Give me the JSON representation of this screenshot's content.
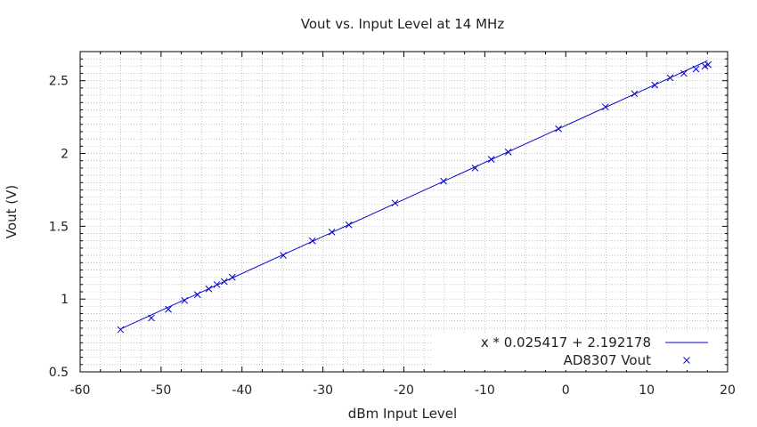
{
  "chart_data": {
    "type": "scatter",
    "title": "Vout vs. Input Level at 14 MHz",
    "xlabel": "dBm Input Level",
    "ylabel": "Vout (V)",
    "xlim": [
      -60,
      20
    ],
    "ylim": [
      0.5,
      2.7
    ],
    "x_ticks": [
      -60,
      -50,
      -40,
      -30,
      -20,
      -10,
      0,
      10,
      20
    ],
    "y_ticks": [
      0.5,
      1,
      1.5,
      2,
      2.5
    ],
    "x_tick_labels": [
      "-60",
      "-50",
      "-40",
      "-30",
      "-20",
      "-10",
      "0",
      "10",
      "20"
    ],
    "y_tick_labels": [
      "0.5",
      "1",
      "1.5",
      "2",
      "2.5"
    ],
    "grid": true,
    "legend_position": "bottom-right",
    "series": [
      {
        "name": "x * 0.025417 + 2.192178",
        "kind": "line",
        "color": "#0000cc",
        "slope": 0.025417,
        "intercept": 2.192178,
        "x_range": [
          -55,
          17.5
        ]
      },
      {
        "name": "AD8307 Vout",
        "kind": "scatter",
        "marker": "x",
        "color": "#0000cc",
        "x": [
          -55,
          -51.2,
          -49.1,
          -47.1,
          -45.5,
          -44.1,
          -43.1,
          -42.2,
          -41.2,
          -34.9,
          -31.3,
          -28.9,
          -26.8,
          -21.1,
          -15.1,
          -11.2,
          -9.2,
          -7.1,
          -0.9,
          4.9,
          8.5,
          11,
          12.9,
          14.6,
          16.1,
          17.2,
          17.6
        ],
        "y": [
          0.79,
          0.87,
          0.93,
          0.99,
          1.03,
          1.07,
          1.1,
          1.12,
          1.15,
          1.3,
          1.4,
          1.46,
          1.51,
          1.66,
          1.81,
          1.9,
          1.96,
          2.01,
          2.17,
          2.32,
          2.41,
          2.47,
          2.52,
          2.55,
          2.58,
          2.6,
          2.61
        ]
      }
    ]
  },
  "colors": {
    "series": "#0000cc",
    "grid": "#a0a0a0",
    "axis": "#000000"
  }
}
